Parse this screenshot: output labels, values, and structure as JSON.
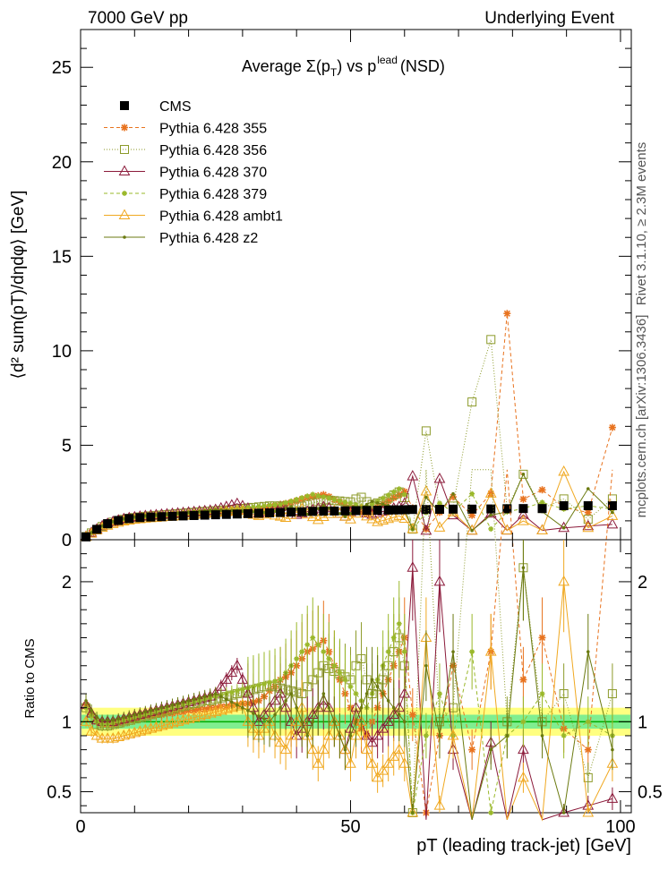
{
  "header": {
    "left": "7000 GeV pp",
    "right": "Underlying Event"
  },
  "side_labels": {
    "rivet": "Rivet 3.1.10, ≥ 2.3M events",
    "mcplots": "mcplots.cern.ch [arXiv:1306.3436]"
  },
  "title_parts": {
    "main": "Average Σ(p",
    "sub_t": "T",
    "mid": ") vs p",
    "sup": "lead",
    "end": "(NSD)"
  },
  "ylabel_main": "⟨d² sum(pT)/dηdφ⟩ [GeV]",
  "ylabel_ratio": "Ratio to CMS",
  "xlabel": "pT (leading track-jet) [GeV]",
  "colors": {
    "cms": "#000000",
    "p355": "#e8731f",
    "p356": "#8c9a2a",
    "p370": "#8b1a3a",
    "p379": "#9ab82a",
    "ambt1": "#f0a820",
    "z2": "#6b7a10",
    "band_inner": "#80ee90",
    "band_outer": "#ffff80"
  },
  "chart_data": {
    "type": "line",
    "title": "Average Σ(pT) vs pT^lead (NSD)",
    "xlabel": "pT (leading track-jet) [GeV]",
    "ylabel": "⟨d² sum(pT)/dηdφ⟩ [GeV]",
    "ratio_ylabel": "Ratio to CMS",
    "xlim": [
      0,
      102
    ],
    "ylim": [
      0,
      27
    ],
    "ratio_ylim": [
      0.35,
      2.3
    ],
    "x_ticks": [
      0,
      50,
      100
    ],
    "y_ticks": [
      0,
      5,
      10,
      15,
      20,
      25
    ],
    "ratio_ticks": [
      0.5,
      1,
      2
    ],
    "legend_position": "top-left",
    "x": [
      1,
      2,
      3,
      4,
      5,
      6,
      7,
      8,
      9,
      10,
      11,
      12,
      13,
      14,
      15,
      16,
      17,
      18,
      19,
      20,
      21,
      22,
      23,
      24,
      25,
      26,
      27,
      28,
      29,
      30,
      31,
      32,
      33,
      34,
      35,
      36,
      37,
      38,
      39,
      40,
      41,
      42,
      43,
      44,
      45,
      46,
      47,
      48,
      49,
      50,
      51,
      52,
      53,
      54,
      55,
      56,
      57,
      58,
      59,
      60,
      61.5,
      64,
      66.5,
      69,
      72.5,
      76,
      79,
      82,
      85.5,
      89.5,
      94,
      98.5
    ],
    "cms": [
      0.15,
      0.35,
      0.55,
      0.72,
      0.85,
      0.95,
      1.02,
      1.08,
      1.12,
      1.15,
      1.17,
      1.19,
      1.2,
      1.21,
      1.22,
      1.23,
      1.24,
      1.25,
      1.26,
      1.27,
      1.28,
      1.29,
      1.3,
      1.31,
      1.32,
      1.33,
      1.34,
      1.35,
      1.36,
      1.37,
      1.38,
      1.39,
      1.4,
      1.41,
      1.42,
      1.43,
      1.44,
      1.45,
      1.46,
      1.47,
      1.48,
      1.49,
      1.5,
      1.5,
      1.51,
      1.52,
      1.52,
      1.53,
      1.53,
      1.54,
      1.54,
      1.55,
      1.55,
      1.56,
      1.56,
      1.57,
      1.57,
      1.58,
      1.58,
      1.59,
      1.6,
      1.6,
      1.61,
      1.62,
      1.62,
      1.63,
      1.64,
      1.65,
      1.65,
      1.8,
      1.8,
      1.8
    ],
    "series": [
      {
        "name": "CMS",
        "key": "cms",
        "marker": "filled-square",
        "dash": "none"
      },
      {
        "name": "Pythia 6.428 355",
        "key": "p355",
        "marker": "star",
        "dash": "4,3",
        "ratio": [
          1.12,
          1.05,
          1.0,
          0.98,
          0.98,
          0.98,
          0.99,
          1.0,
          1.01,
          1.02,
          1.03,
          1.04,
          1.04,
          1.05,
          1.05,
          1.06,
          1.06,
          1.07,
          1.07,
          1.08,
          1.08,
          1.09,
          1.09,
          1.1,
          1.1,
          1.11,
          1.11,
          1.12,
          1.12,
          1.13,
          1.13,
          1.14,
          1.15,
          1.18,
          1.22,
          1.25,
          1.3,
          1.32,
          1.35,
          1.4,
          1.45,
          1.5,
          1.52,
          1.55,
          1.58,
          1.5,
          1.4,
          1.3,
          1.2,
          1.1,
          1.0,
          0.95,
          0.9,
          1.0,
          1.1,
          1.2,
          1.3,
          1.4,
          1.5,
          1.6,
          1.05,
          0.35,
          0.9,
          1.4,
          0.8,
          1.5,
          7.3,
          1.3,
          1.6,
          0.95,
          0.8,
          3.3
        ]
      },
      {
        "name": "Pythia 6.428 356",
        "key": "p356",
        "marker": "open-square",
        "dash": "1,2",
        "ratio": [
          1.1,
          1.03,
          0.98,
          0.97,
          0.97,
          0.98,
          0.99,
          1.0,
          1.01,
          1.02,
          1.03,
          1.04,
          1.05,
          1.06,
          1.07,
          1.08,
          1.09,
          1.1,
          1.11,
          1.12,
          1.13,
          1.14,
          1.15,
          1.15,
          1.16,
          1.17,
          1.18,
          1.19,
          1.2,
          1.21,
          1.22,
          1.23,
          1.24,
          1.25,
          1.26,
          1.25,
          1.24,
          1.23,
          1.22,
          1.21,
          1.2,
          1.25,
          1.3,
          1.35,
          1.4,
          1.38,
          1.36,
          1.34,
          1.32,
          1.3,
          1.4,
          1.45,
          1.3,
          1.2,
          1.25,
          1.3,
          1.4,
          1.5,
          1.6,
          1.4,
          0.35,
          3.6,
          1.0,
          1.1,
          4.5,
          6.5,
          1.0,
          2.1,
          1.0,
          1.2,
          0.6,
          1.2
        ]
      },
      {
        "name": "Pythia 6.428 370",
        "key": "p370",
        "marker": "open-triangle",
        "dash": "none",
        "ratio": [
          1.12,
          1.06,
          1.01,
          1.0,
          1.0,
          1.0,
          1.01,
          1.02,
          1.03,
          1.04,
          1.05,
          1.06,
          1.07,
          1.08,
          1.09,
          1.1,
          1.11,
          1.12,
          1.13,
          1.14,
          1.15,
          1.16,
          1.17,
          1.18,
          1.2,
          1.25,
          1.3,
          1.35,
          1.4,
          1.3,
          1.2,
          1.1,
          1.0,
          1.05,
          1.1,
          1.15,
          1.2,
          1.1,
          1.0,
          0.9,
          0.95,
          1.0,
          1.05,
          1.1,
          1.15,
          1.1,
          1.0,
          0.9,
          0.8,
          0.95,
          1.1,
          1.0,
          0.9,
          0.85,
          0.9,
          0.95,
          1.0,
          1.05,
          1.1,
          1.2,
          2.1,
          0.3,
          2.0,
          0.8,
          0.3,
          0.85,
          0.3,
          0.8,
          0.3,
          0.35,
          0.4,
          0.45
        ]
      },
      {
        "name": "Pythia 6.428 379",
        "key": "p379",
        "marker": "small-star",
        "dash": "4,3",
        "ratio": [
          1.1,
          1.04,
          1.0,
          0.98,
          0.98,
          0.99,
          1.0,
          1.01,
          1.02,
          1.03,
          1.04,
          1.05,
          1.06,
          1.07,
          1.08,
          1.09,
          1.1,
          1.11,
          1.12,
          1.13,
          1.14,
          1.15,
          1.16,
          1.17,
          1.18,
          1.19,
          1.2,
          1.21,
          1.22,
          1.23,
          1.24,
          1.25,
          1.26,
          1.27,
          1.28,
          1.29,
          1.3,
          1.35,
          1.4,
          1.45,
          1.5,
          1.55,
          1.6,
          1.55,
          1.5,
          1.45,
          1.4,
          1.35,
          1.3,
          1.25,
          1.2,
          1.15,
          1.1,
          1.2,
          1.3,
          1.4,
          1.5,
          1.6,
          1.7,
          1.5,
          0.35,
          0.9,
          1.2,
          0.9,
          1.5,
          0.35,
          0.9,
          1.0,
          1.2,
          0.9,
          1.0,
          0.9
        ]
      },
      {
        "name": "Pythia 6.428 ambt1",
        "key": "ambt1",
        "marker": "open-triangle",
        "dash": "none",
        "ratio": [
          1.0,
          0.93,
          0.9,
          0.88,
          0.88,
          0.88,
          0.89,
          0.9,
          0.91,
          0.92,
          0.93,
          0.94,
          0.95,
          0.96,
          0.97,
          0.98,
          0.99,
          1.0,
          1.01,
          1.02,
          1.03,
          1.04,
          1.05,
          1.06,
          1.07,
          1.08,
          1.09,
          1.1,
          1.11,
          1.12,
          1.0,
          0.95,
          0.9,
          0.95,
          1.0,
          0.9,
          0.85,
          0.8,
          0.9,
          1.0,
          1.1,
          0.9,
          0.8,
          0.7,
          0.8,
          0.9,
          1.0,
          0.9,
          0.8,
          0.7,
          0.9,
          1.0,
          0.8,
          0.7,
          0.6,
          0.65,
          0.7,
          0.75,
          0.8,
          0.7,
          0.35,
          1.6,
          0.4,
          0.9,
          0.3,
          1.5,
          0.3,
          0.6,
          0.3,
          2.0,
          0.35,
          0.7
        ]
      },
      {
        "name": "Pythia 6.428 z2",
        "key": "z2",
        "marker": "dot",
        "dash": "none",
        "ratio": [
          1.15,
          1.08,
          1.03,
          1.01,
          1.01,
          1.01,
          1.02,
          1.03,
          1.04,
          1.05,
          1.06,
          1.07,
          1.08,
          1.09,
          1.1,
          1.11,
          1.12,
          1.13,
          1.14,
          1.15,
          1.16,
          1.17,
          1.18,
          1.19,
          1.2,
          1.18,
          1.16,
          1.14,
          1.12,
          1.1,
          1.08,
          1.06,
          1.04,
          1.02,
          1.0,
          1.05,
          1.1,
          1.15,
          1.2,
          1.1,
          1.0,
          0.9,
          1.0,
          1.1,
          1.2,
          1.1,
          1.0,
          0.9,
          0.8,
          0.9,
          1.0,
          1.1,
          1.2,
          1.3,
          1.25,
          1.2,
          1.15,
          1.1,
          1.05,
          1.0,
          0.35,
          1.4,
          0.9,
          1.5,
          0.3,
          0.8,
          0.9,
          2.1,
          0.9,
          0.35,
          1.5,
          0.8
        ]
      }
    ]
  }
}
